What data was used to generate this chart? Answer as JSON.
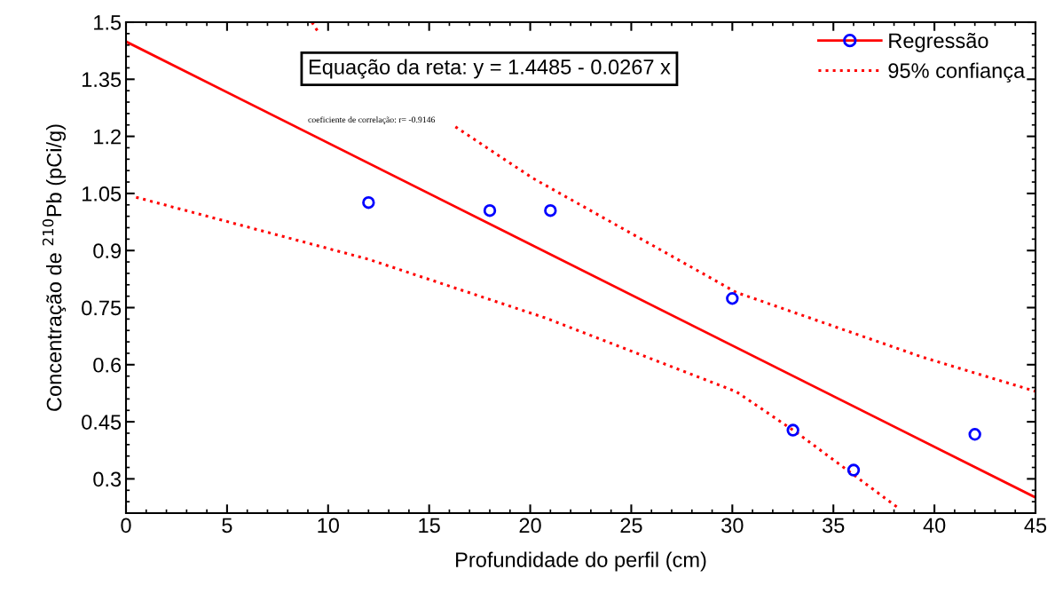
{
  "chart_data": {
    "type": "scatter",
    "xlabel": "Profundidade do perfil (cm)",
    "ylabel": "Concentração de $^{210}$Pb (pCi/g)",
    "annotations": [
      "Equação da reta: y = 1.4485 - 0.0267 x",
      "coeficiente de correlação: r= -0.9146"
    ],
    "x": [
      12,
      18,
      21,
      30,
      33,
      36,
      42
    ],
    "series": [
      {
        "name": "Regressão",
        "color": "#0000ff",
        "marker": "circle",
        "values": [
          1.026,
          1.005,
          1.005,
          0.774,
          0.428,
          0.323,
          0.417
        ]
      },
      {
        "type": "line",
        "color": "#ff0000",
        "line_style": "solid",
        "x": [
          0,
          45
        ],
        "values": [
          1.449,
          0.251
        ]
      },
      {
        "name": "95% confiança",
        "type": "line",
        "color": "#ff0000",
        "line_style": "dotted",
        "x": [
          9.2,
          9.5,
          null,
          16.3,
          20.1,
          30.2,
          39.4,
          45
        ],
        "values": [
          1.5,
          1.475,
          null,
          1.225,
          1.091,
          0.79,
          0.62,
          0.53
        ]
      },
      {
        "type": "line",
        "color": "#ff0000",
        "line_style": "dotted",
        "x": [
          0.5,
          12,
          20.8,
          30.2,
          33.2,
          38.3
        ],
        "values": [
          1.04,
          0.877,
          0.722,
          0.529,
          0.421,
          0.22
        ]
      }
    ],
    "xlim": [
      0,
      45
    ],
    "xticks": [
      0,
      5,
      10,
      15,
      20,
      25,
      30,
      35,
      40,
      45
    ],
    "ylim": [
      0.21,
      1.5
    ],
    "yticks": [
      0.3,
      0.45,
      0.6,
      0.75,
      0.9,
      1.05,
      1.2,
      1.35,
      1.5
    ],
    "grid": false,
    "legend": "top right"
  }
}
